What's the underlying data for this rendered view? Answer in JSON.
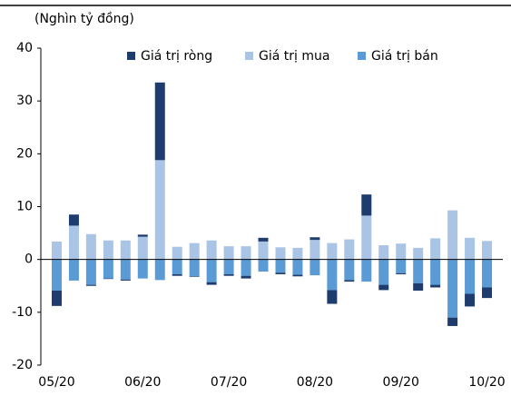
{
  "chart_data": {
    "type": "stacked_bar",
    "y_label": "(Nghìn tỷ đồng)",
    "categories": [
      "05/20",
      null,
      null,
      null,
      null,
      "06/20",
      null,
      null,
      null,
      null,
      "07/20",
      null,
      null,
      null,
      null,
      "08/20",
      null,
      null,
      null,
      null,
      "09/20",
      null,
      null,
      null,
      null,
      "10/20"
    ],
    "series": [
      {
        "name": "Giá trị ròng",
        "color": "#1f3c6e",
        "values": [
          -2.9,
          2.1,
          -0.2,
          -0.1,
          -0.2,
          0.4,
          14.7,
          -0.3,
          -0.1,
          -0.5,
          -0.3,
          -0.5,
          0.7,
          -0.3,
          -0.3,
          0.5,
          -2.6,
          -0.3,
          4.0,
          -1.0,
          -0.2,
          -1.4,
          -0.5,
          -1.6,
          -2.4,
          -2.0
        ]
      },
      {
        "name": "Giá trị mua",
        "color": "#a9c4e4",
        "values": [
          3.4,
          6.4,
          4.8,
          3.6,
          3.6,
          4.3,
          18.8,
          2.4,
          3.1,
          3.6,
          2.5,
          2.5,
          3.4,
          2.3,
          2.2,
          3.7,
          3.1,
          3.8,
          8.3,
          2.7,
          3.0,
          2.2,
          4.0,
          9.3,
          4.1,
          3.5
        ]
      },
      {
        "name": "Giá trị bán",
        "color": "#5b9bd5",
        "values": [
          -5.9,
          -4.0,
          -4.8,
          -3.6,
          -3.8,
          -3.6,
          -3.9,
          -2.8,
          -3.2,
          -4.3,
          -2.8,
          -3.1,
          -2.3,
          -2.5,
          -2.9,
          -3.0,
          -5.8,
          -3.9,
          -4.2,
          -4.8,
          -2.6,
          -4.5,
          -4.8,
          -11.0,
          -6.5,
          -5.3
        ]
      }
    ],
    "ylim": [
      -20,
      40
    ],
    "yticks": [
      -20,
      -10,
      0,
      10,
      20,
      30,
      40
    ]
  }
}
